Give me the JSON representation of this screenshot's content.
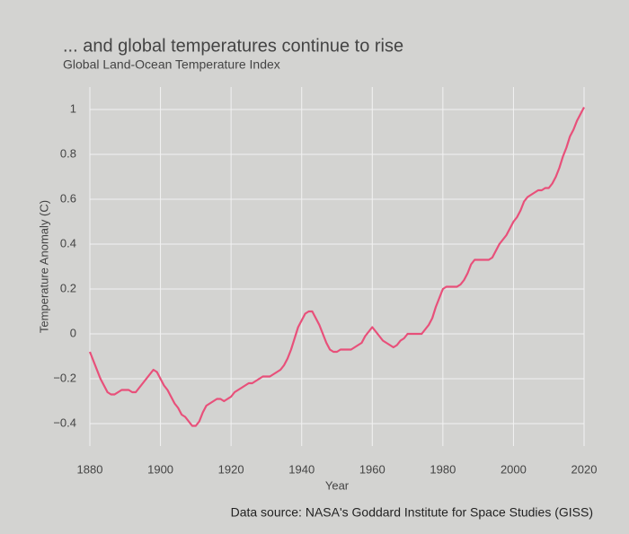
{
  "chart_data": {
    "type": "line",
    "title": "... and global temperatures continue to rise",
    "subtitle": "Global Land-Ocean Temperature Index",
    "x_label": "Year",
    "y_label": "Temperature Anomaly (C)",
    "source": "Data source: NASA's Goddard Institute for Space Studies (GISS)",
    "x": [
      1880,
      1881,
      1882,
      1883,
      1884,
      1885,
      1886,
      1887,
      1888,
      1889,
      1890,
      1891,
      1892,
      1893,
      1894,
      1895,
      1896,
      1897,
      1898,
      1899,
      1900,
      1901,
      1902,
      1903,
      1904,
      1905,
      1906,
      1907,
      1908,
      1909,
      1910,
      1911,
      1912,
      1913,
      1914,
      1915,
      1916,
      1917,
      1918,
      1919,
      1920,
      1921,
      1922,
      1923,
      1924,
      1925,
      1926,
      1927,
      1928,
      1929,
      1930,
      1931,
      1932,
      1933,
      1934,
      1935,
      1936,
      1937,
      1938,
      1939,
      1940,
      1941,
      1942,
      1943,
      1944,
      1945,
      1946,
      1947,
      1948,
      1949,
      1950,
      1951,
      1952,
      1953,
      1954,
      1955,
      1956,
      1957,
      1958,
      1959,
      1960,
      1961,
      1962,
      1963,
      1964,
      1965,
      1966,
      1967,
      1968,
      1969,
      1970,
      1971,
      1972,
      1973,
      1974,
      1975,
      1976,
      1977,
      1978,
      1979,
      1980,
      1981,
      1982,
      1983,
      1984,
      1985,
      1986,
      1987,
      1988,
      1989,
      1990,
      1991,
      1992,
      1993,
      1994,
      1995,
      1996,
      1997,
      1998,
      1999,
      2000,
      2001,
      2002,
      2003,
      2004,
      2005,
      2006,
      2007,
      2008,
      2009,
      2010,
      2011,
      2012,
      2013,
      2014,
      2015,
      2016,
      2017,
      2018,
      2019,
      2020
    ],
    "series": [
      {
        "color": "#e8507a",
        "values": [
          -0.08,
          -0.12,
          -0.16,
          -0.2,
          -0.23,
          -0.26,
          -0.27,
          -0.27,
          -0.26,
          -0.25,
          -0.25,
          -0.25,
          -0.26,
          -0.26,
          -0.24,
          -0.22,
          -0.2,
          -0.18,
          -0.16,
          -0.17,
          -0.2,
          -0.23,
          -0.25,
          -0.28,
          -0.31,
          -0.33,
          -0.36,
          -0.37,
          -0.39,
          -0.41,
          -0.41,
          -0.39,
          -0.35,
          -0.32,
          -0.31,
          -0.3,
          -0.29,
          -0.29,
          -0.3,
          -0.29,
          -0.28,
          -0.26,
          -0.25,
          -0.24,
          -0.23,
          -0.22,
          -0.22,
          -0.21,
          -0.2,
          -0.19,
          -0.19,
          -0.19,
          -0.18,
          -0.17,
          -0.16,
          -0.14,
          -0.11,
          -0.07,
          -0.02,
          0.03,
          0.06,
          0.09,
          0.1,
          0.1,
          0.07,
          0.04,
          0.0,
          -0.04,
          -0.07,
          -0.08,
          -0.08,
          -0.07,
          -0.07,
          -0.07,
          -0.07,
          -0.06,
          -0.05,
          -0.04,
          -0.01,
          0.01,
          0.03,
          0.01,
          -0.01,
          -0.03,
          -0.04,
          -0.05,
          -0.06,
          -0.05,
          -0.03,
          -0.02,
          0.0,
          0.0,
          0.0,
          0.0,
          0.0,
          0.02,
          0.04,
          0.07,
          0.12,
          0.16,
          0.2,
          0.21,
          0.21,
          0.21,
          0.21,
          0.22,
          0.24,
          0.27,
          0.31,
          0.33,
          0.33,
          0.33,
          0.33,
          0.33,
          0.34,
          0.37,
          0.4,
          0.42,
          0.44,
          0.47,
          0.5,
          0.52,
          0.55,
          0.59,
          0.61,
          0.62,
          0.63,
          0.64,
          0.64,
          0.65,
          0.65,
          0.67,
          0.7,
          0.74,
          0.79,
          0.83,
          0.88,
          0.91,
          0.95,
          0.98,
          1.01
        ]
      }
    ],
    "xlim": [
      1880,
      2020
    ],
    "xticks": [
      1880,
      1900,
      1920,
      1940,
      1960,
      1980,
      2000,
      2020
    ],
    "ylim": [
      -0.5,
      1.1
    ],
    "yticks": [
      {
        "value": -0.4,
        "label": "−0.4"
      },
      {
        "value": -0.2,
        "label": "−0.2"
      },
      0,
      0.2,
      0.4,
      0.6,
      0.8,
      1
    ],
    "grid": true
  }
}
